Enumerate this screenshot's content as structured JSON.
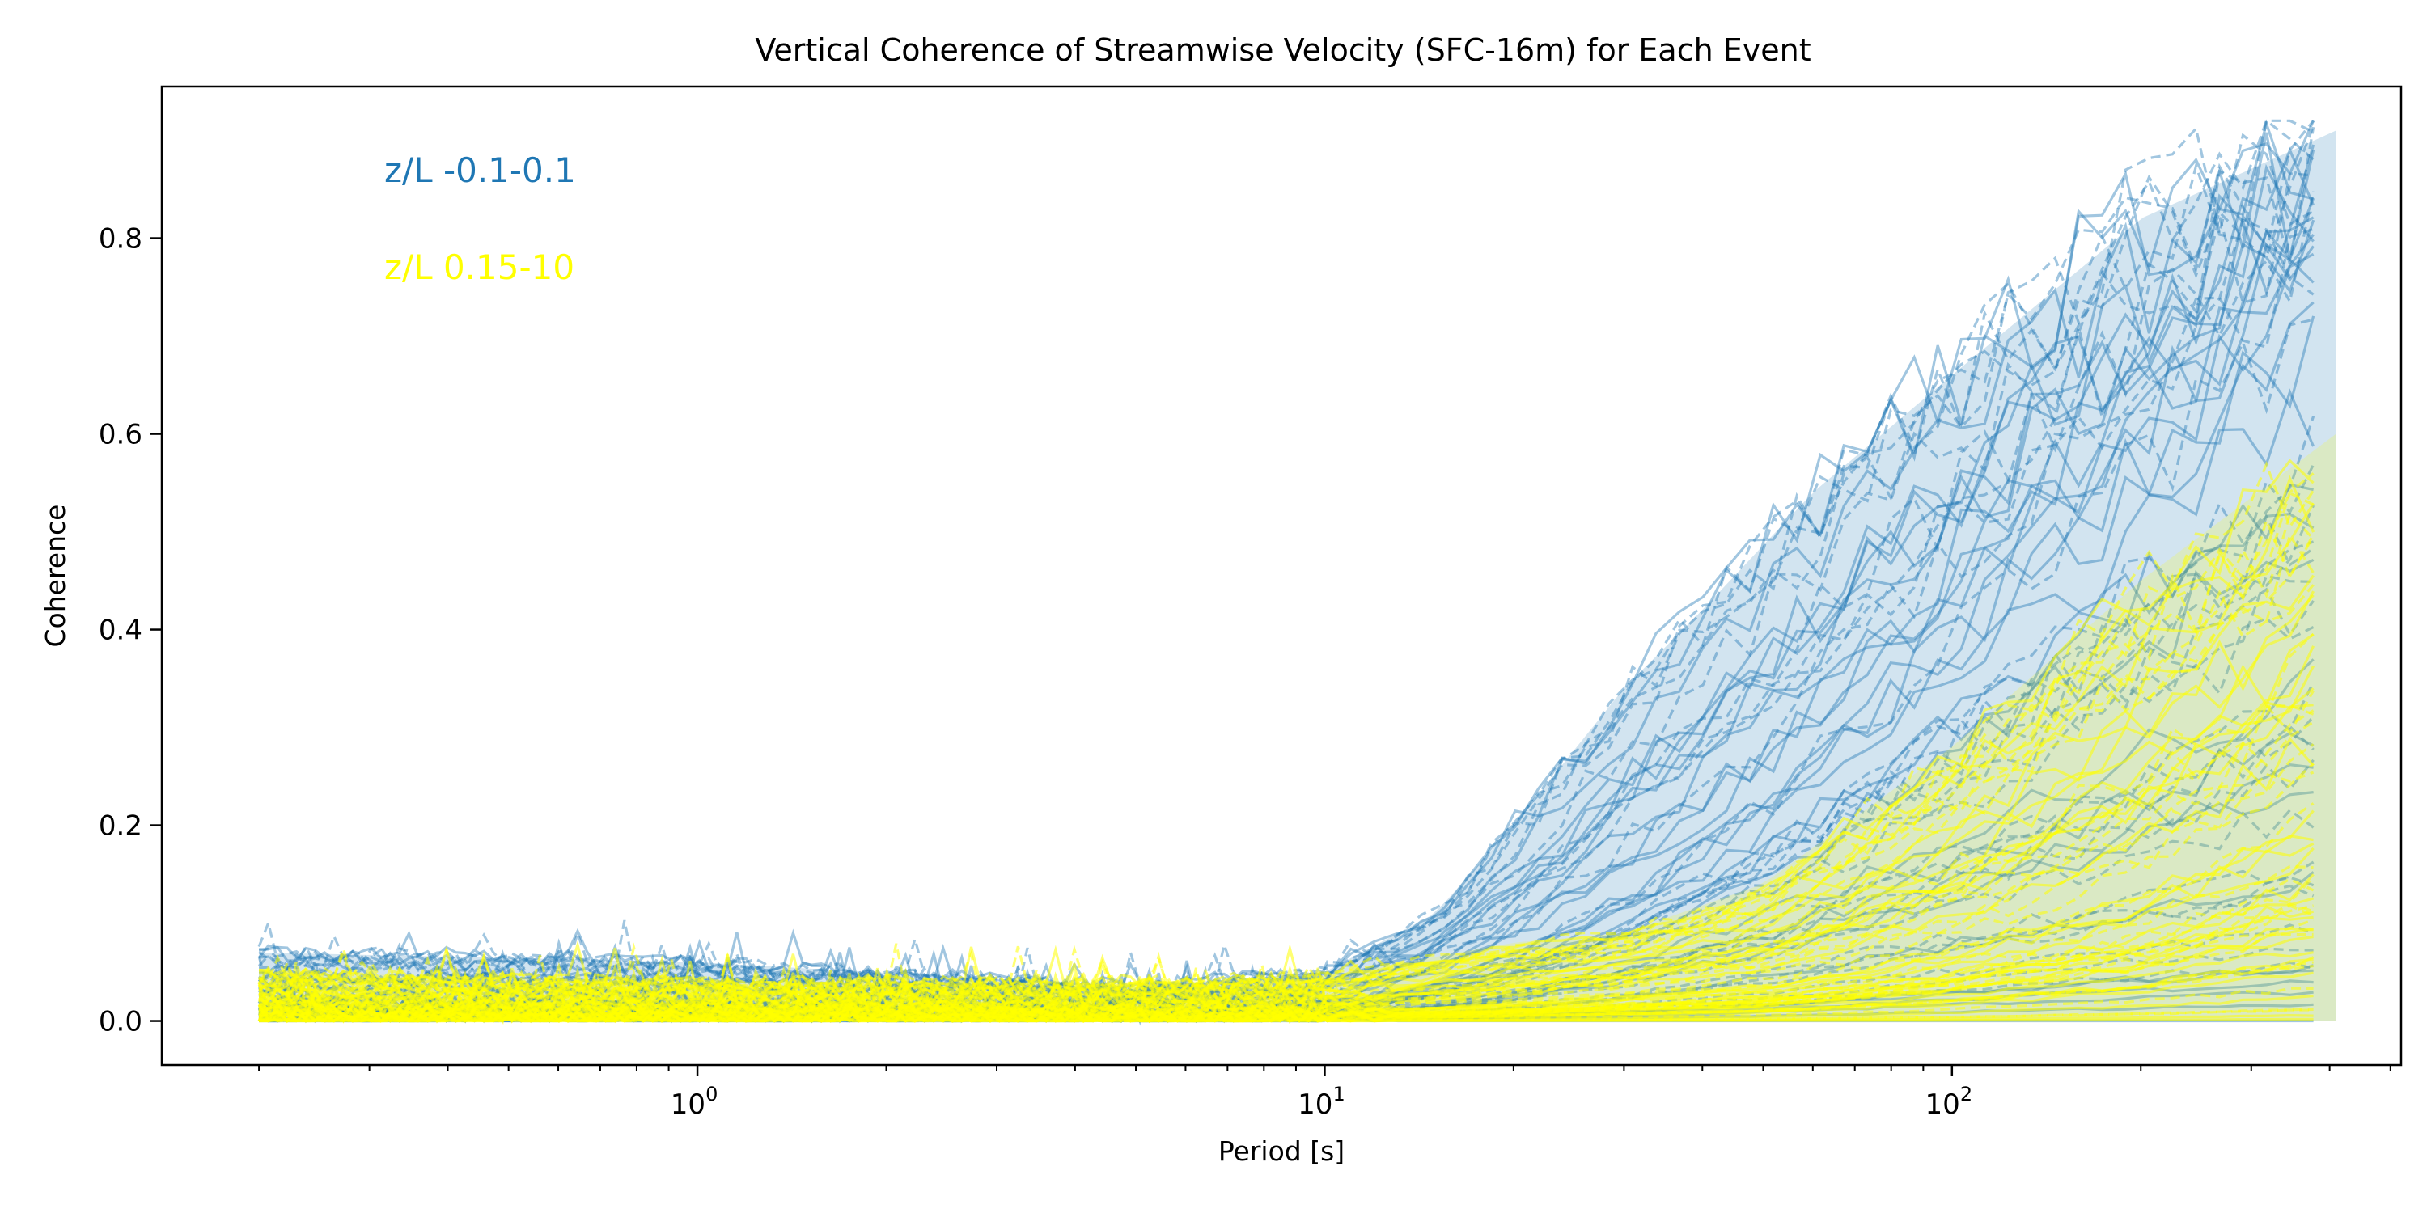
{
  "chart_data": {
    "type": "line",
    "title": "Vertical Coherence of Streamwise Velocity (SFC-16m) for Each Event",
    "xlabel": "Period [s]",
    "ylabel": "Coherence",
    "xscale": "log",
    "xlim": [
      0.14,
      520
    ],
    "ylim": [
      -0.045,
      0.955
    ],
    "grid": false,
    "x_ticks": [
      1,
      10,
      100
    ],
    "x_tick_labels": [
      {
        "base": "10",
        "exp": "0"
      },
      {
        "base": "10",
        "exp": "1"
      },
      {
        "base": "10",
        "exp": "2"
      }
    ],
    "y_ticks": [
      0.0,
      0.2,
      0.4,
      0.6,
      0.8
    ],
    "y_tick_labels": [
      "0.0",
      "0.2",
      "0.4",
      "0.6",
      "0.8"
    ],
    "legend_position": "top-left",
    "series": [
      {
        "name": "z/L -0.1-0.1",
        "color": "#1f77b4",
        "n_lines": 60,
        "x_range": [
          0.2,
          409.6
        ],
        "envelope": [
          [
            0.2,
            0.07
          ],
          [
            1,
            0.06
          ],
          [
            5,
            0.035
          ],
          [
            10,
            0.05
          ],
          [
            15,
            0.11
          ],
          [
            20,
            0.2
          ],
          [
            30,
            0.34
          ],
          [
            40,
            0.42
          ],
          [
            60,
            0.54
          ],
          [
            100,
            0.66
          ],
          [
            200,
            0.82
          ],
          [
            409.6,
            0.91
          ]
        ],
        "median": [
          [
            0.2,
            0.02
          ],
          [
            10,
            0.015
          ],
          [
            15,
            0.04
          ],
          [
            20,
            0.07
          ],
          [
            30,
            0.13
          ],
          [
            50,
            0.23
          ],
          [
            100,
            0.41
          ],
          [
            200,
            0.6
          ],
          [
            409.6,
            0.78
          ]
        ]
      },
      {
        "name": "z/L 0.15-10",
        "color": "#ffff00",
        "n_lines": 60,
        "x_range": [
          0.2,
          409.6
        ],
        "envelope": [
          [
            0.2,
            0.05
          ],
          [
            1,
            0.04
          ],
          [
            5,
            0.04
          ],
          [
            10,
            0.045
          ],
          [
            20,
            0.08
          ],
          [
            30,
            0.09
          ],
          [
            50,
            0.14
          ],
          [
            100,
            0.28
          ],
          [
            200,
            0.45
          ],
          [
            409.6,
            0.6
          ]
        ],
        "median": [
          [
            0.2,
            0.012
          ],
          [
            10,
            0.01
          ],
          [
            20,
            0.02
          ],
          [
            50,
            0.04
          ],
          [
            100,
            0.08
          ],
          [
            200,
            0.14
          ],
          [
            409.6,
            0.25
          ]
        ]
      }
    ]
  }
}
